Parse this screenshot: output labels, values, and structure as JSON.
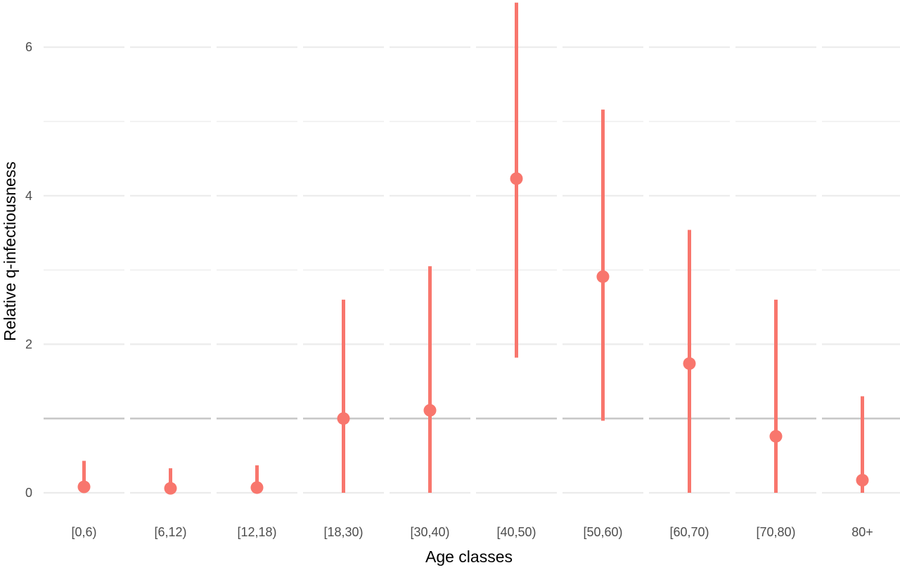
{
  "chart_data": {
    "type": "pointrange",
    "facetted_by_category": true,
    "xlabel": "Age classes",
    "ylabel": "Relative q-infectiousness",
    "ylim": [
      0,
      6.2
    ],
    "y_ticks": [
      0,
      2,
      4,
      6
    ],
    "y_tick_labels": [
      "0",
      "2",
      "4",
      "6"
    ],
    "reference_line": 1,
    "grid": "horizontal",
    "legend": "none",
    "color": "#f8766d",
    "reference_line_color": "#c8c8c8",
    "grid_color": "#ebebeb",
    "categories": [
      "[0,6)",
      "[6,12)",
      "[12,18)",
      "[18,30)",
      "[30,40)",
      "[40,50)",
      "[50,60)",
      "[60,70)",
      "[70,80)",
      "80+"
    ],
    "estimates": [
      0.08,
      0.06,
      0.07,
      1.0,
      1.11,
      4.23,
      2.91,
      1.74,
      0.76,
      0.17
    ],
    "lower": [
      0.08,
      0.06,
      0.07,
      0.0,
      0.0,
      1.82,
      0.97,
      0.0,
      0.0,
      0.0
    ],
    "upper": [
      0.43,
      0.33,
      0.37,
      2.6,
      3.05,
      6.6,
      5.16,
      3.54,
      2.6,
      1.3
    ]
  }
}
